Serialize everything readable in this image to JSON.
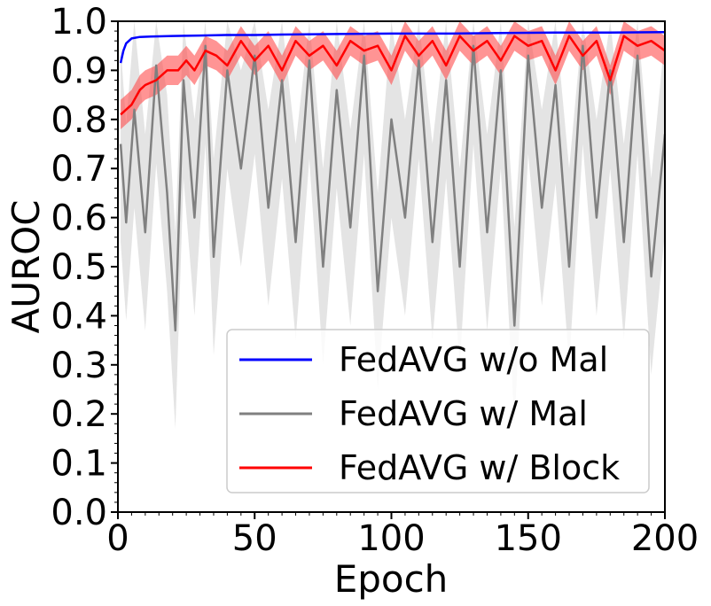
{
  "chart_data": {
    "type": "line",
    "title": "",
    "xlabel": "Epoch",
    "ylabel": "AUROC",
    "xlim": [
      0,
      200
    ],
    "ylim": [
      0.0,
      1.0
    ],
    "x_ticks": [
      "0",
      "50",
      "100",
      "150",
      "200"
    ],
    "y_ticks": [
      "0.0",
      "0.1",
      "0.2",
      "0.3",
      "0.4",
      "0.5",
      "0.6",
      "0.7",
      "0.8",
      "0.9",
      "1.0"
    ],
    "legend": {
      "position": "lower-right",
      "entries": [
        {
          "label": "FedAVG w/o Mal",
          "color": "#0000ff"
        },
        {
          "label": "FedAVG w/ Mal",
          "color": "#808080"
        },
        {
          "label": "FedAVG w/ Block",
          "color": "#ff0000"
        }
      ]
    },
    "series": [
      {
        "name": "FedAVG w/o Mal",
        "color": "#0000ff",
        "x": [
          1,
          2,
          3,
          5,
          8,
          12,
          20,
          30,
          40,
          50,
          60,
          80,
          100,
          120,
          140,
          160,
          180,
          200
        ],
        "values": [
          0.915,
          0.94,
          0.955,
          0.965,
          0.968,
          0.969,
          0.97,
          0.971,
          0.972,
          0.972,
          0.973,
          0.974,
          0.975,
          0.975,
          0.976,
          0.977,
          0.977,
          0.978
        ]
      },
      {
        "name": "FedAVG w/ Mal",
        "color": "#808080",
        "x": [
          1,
          3,
          6,
          10,
          14,
          18,
          21,
          24,
          28,
          32,
          35,
          40,
          45,
          50,
          55,
          60,
          65,
          70,
          75,
          80,
          85,
          90,
          95,
          100,
          105,
          110,
          115,
          120,
          125,
          130,
          135,
          140,
          145,
          150,
          155,
          160,
          165,
          170,
          175,
          180,
          185,
          190,
          195,
          200
        ],
        "values": [
          0.75,
          0.59,
          0.82,
          0.57,
          0.91,
          0.65,
          0.37,
          0.88,
          0.6,
          0.95,
          0.52,
          0.9,
          0.7,
          0.93,
          0.62,
          0.88,
          0.55,
          0.92,
          0.5,
          0.86,
          0.58,
          0.93,
          0.45,
          0.8,
          0.6,
          0.92,
          0.55,
          0.88,
          0.5,
          0.95,
          0.57,
          0.9,
          0.38,
          0.93,
          0.62,
          0.87,
          0.5,
          0.95,
          0.6,
          0.9,
          0.55,
          0.93,
          0.48,
          0.77
        ]
      },
      {
        "name": "FedAVG w/ Block",
        "color": "#ff0000",
        "x": [
          1,
          3,
          5,
          8,
          10,
          14,
          18,
          22,
          25,
          28,
          32,
          36,
          40,
          45,
          50,
          55,
          60,
          65,
          70,
          75,
          80,
          85,
          90,
          95,
          100,
          105,
          110,
          115,
          120,
          125,
          130,
          135,
          140,
          145,
          150,
          155,
          160,
          165,
          170,
          175,
          180,
          185,
          190,
          195,
          200
        ],
        "values": [
          0.81,
          0.82,
          0.83,
          0.86,
          0.87,
          0.88,
          0.9,
          0.9,
          0.92,
          0.9,
          0.94,
          0.93,
          0.91,
          0.96,
          0.92,
          0.95,
          0.9,
          0.96,
          0.93,
          0.95,
          0.91,
          0.96,
          0.94,
          0.95,
          0.9,
          0.97,
          0.93,
          0.96,
          0.91,
          0.97,
          0.94,
          0.96,
          0.92,
          0.97,
          0.95,
          0.96,
          0.9,
          0.97,
          0.93,
          0.96,
          0.88,
          0.97,
          0.95,
          0.96,
          0.94
        ]
      }
    ]
  }
}
